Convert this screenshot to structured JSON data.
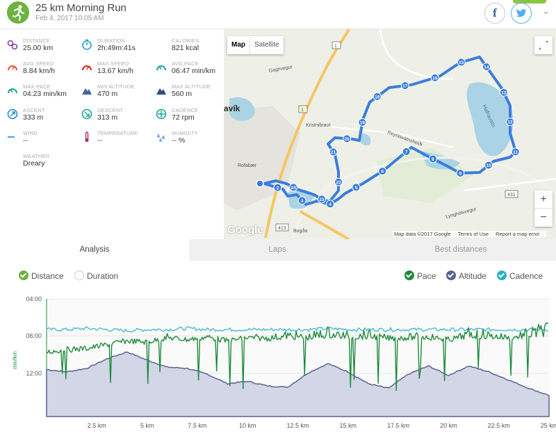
{
  "header": {
    "title": "25 km Morning Run",
    "date": "Feb 4, 2017 10:05 AM",
    "share_facebook": "f",
    "share_twitter": "t"
  },
  "stats": [
    {
      "label": "Distance",
      "value": "25.00 km",
      "icon": "distance-icon",
      "color": "#8e3da8"
    },
    {
      "label": "Duration",
      "value": "2h:49m:41s",
      "icon": "stopwatch-icon",
      "color": "#2a9fd8"
    },
    {
      "label": "Calories",
      "value": "821 kcal",
      "icon": "flame-icon",
      "color": "#e8542a"
    },
    {
      "label": "Avg speed",
      "value": "8.84 km/h",
      "icon": "speedometer-icon",
      "color": "#e8542a"
    },
    {
      "label": "Max speed",
      "value": "13.67 km/h",
      "icon": "speedometer-icon",
      "color": "#d9262a"
    },
    {
      "label": "Avg pace",
      "value": "06:47 min/km",
      "icon": "pace-gauge-icon",
      "color": "#1aa39a"
    },
    {
      "label": "Max pace",
      "value": "04:23 min/km",
      "icon": "pace-gauge-icon",
      "color": "#1aa39a"
    },
    {
      "label": "Min altitude",
      "value": "470 m",
      "icon": "mountain-icon",
      "color": "#4a64a0"
    },
    {
      "label": "Max altitude",
      "value": "560 m",
      "icon": "mountain-icon",
      "color": "#2f4a8a"
    },
    {
      "label": "Ascent",
      "value": "333 m",
      "icon": "ascent-icon",
      "color": "#1a8fc8"
    },
    {
      "label": "Descent",
      "value": "313 m",
      "icon": "descent-icon",
      "color": "#1aa39a"
    },
    {
      "label": "Cadence",
      "value": "72 rpm",
      "icon": "cadence-icon",
      "color": "#1aa39a"
    },
    {
      "label": "Wind",
      "value": "--",
      "icon": "wind-icon",
      "color": "#1a8fc8"
    },
    {
      "label": "Temperature",
      "value": "--",
      "icon": "thermometer-icon",
      "color": "#a8326a"
    },
    {
      "label": "Humidity",
      "value": "-- %",
      "icon": "humidity-icon",
      "color": "#7fa8e0"
    },
    {
      "label": "Weather",
      "value": "Dreary",
      "icon": "cloud-icon",
      "color": "#d0d0d0"
    }
  ],
  "map": {
    "map_label": "Map",
    "satellite_label": "Satellite",
    "google_logo": "Google",
    "footer": [
      "Map data ©2017 Google",
      "Terms of Use",
      "Report a map error"
    ],
    "place_labels": [
      "avík",
      "Hafravatn",
      "Kristnibraut",
      "Reynisvatnsheiði",
      "Rofabær",
      "Gagnvegur",
      "Lynghólsvegur",
      "Bugða"
    ],
    "road_numbers": [
      "1",
      "431",
      "413"
    ],
    "route_color": "#3b7ddd",
    "markers": [
      2,
      3,
      4,
      5,
      6,
      7,
      8,
      9,
      10,
      11,
      12,
      13,
      14,
      15,
      16,
      17,
      18,
      19,
      20,
      21,
      22,
      23,
      24
    ]
  },
  "tabs": [
    {
      "label": "Analysis",
      "active": true
    },
    {
      "label": "Laps",
      "active": false
    },
    {
      "label": "Best distances",
      "active": false
    }
  ],
  "xaxis_toggle": [
    {
      "label": "Distance",
      "checked": true,
      "color": "#6cb33f"
    },
    {
      "label": "Duration",
      "checked": false,
      "color": "#cccccc"
    }
  ],
  "series_toggle": [
    {
      "label": "Pace",
      "checked": true,
      "color": "#1e8a3c"
    },
    {
      "label": "Altitude",
      "checked": true,
      "color": "#5a6290"
    },
    {
      "label": "Cadence",
      "checked": true,
      "color": "#2ab0c8"
    }
  ],
  "chart_data": {
    "type": "line",
    "ylabel": "min/km",
    "y_ticks": [
      "04:00",
      "06:00",
      "12:00"
    ],
    "x_ticks": [
      "2.5 km",
      "5 km",
      "7.5 km",
      "10 km",
      "12.5 km",
      "15 km",
      "17.5 km",
      "20 km",
      "22.5 km",
      "25 km"
    ],
    "xlim": [
      0,
      25
    ],
    "x": [
      0,
      1,
      2,
      3,
      4,
      5,
      6,
      7,
      8,
      9,
      10,
      11,
      12,
      13,
      14,
      15,
      16,
      17,
      18,
      19,
      20,
      21,
      22,
      23,
      24,
      25
    ],
    "series": [
      {
        "name": "Pace",
        "unit": "min/km",
        "color": "#1e8a3c",
        "values": [
          8.6,
          8.2,
          8.0,
          7.4,
          6.8,
          7.0,
          6.3,
          6.6,
          6.2,
          6.8,
          6.3,
          6.4,
          6.1,
          6.3,
          5.9,
          6.2,
          6.1,
          6.4,
          6.3,
          6.2,
          6.6,
          6.0,
          6.1,
          6.3,
          6.0,
          5.6
        ]
      },
      {
        "name": "Altitude",
        "color": "#5a6290",
        "values": [
          0.4,
          0.38,
          0.41,
          0.49,
          0.55,
          0.48,
          0.42,
          0.41,
          0.36,
          0.28,
          0.3,
          0.26,
          0.25,
          0.37,
          0.45,
          0.38,
          0.28,
          0.24,
          0.36,
          0.43,
          0.35,
          0.43,
          0.38,
          0.31,
          0.24,
          0.18
        ]
      },
      {
        "name": "Cadence",
        "color": "#2ab0c8",
        "values": [
          0.74,
          0.74,
          0.75,
          0.74,
          0.73,
          0.74,
          0.74,
          0.75,
          0.74,
          0.74,
          0.74,
          0.74,
          0.74,
          0.74,
          0.75,
          0.74,
          0.74,
          0.74,
          0.74,
          0.74,
          0.74,
          0.74,
          0.74,
          0.74,
          0.74,
          0.74
        ]
      }
    ]
  }
}
